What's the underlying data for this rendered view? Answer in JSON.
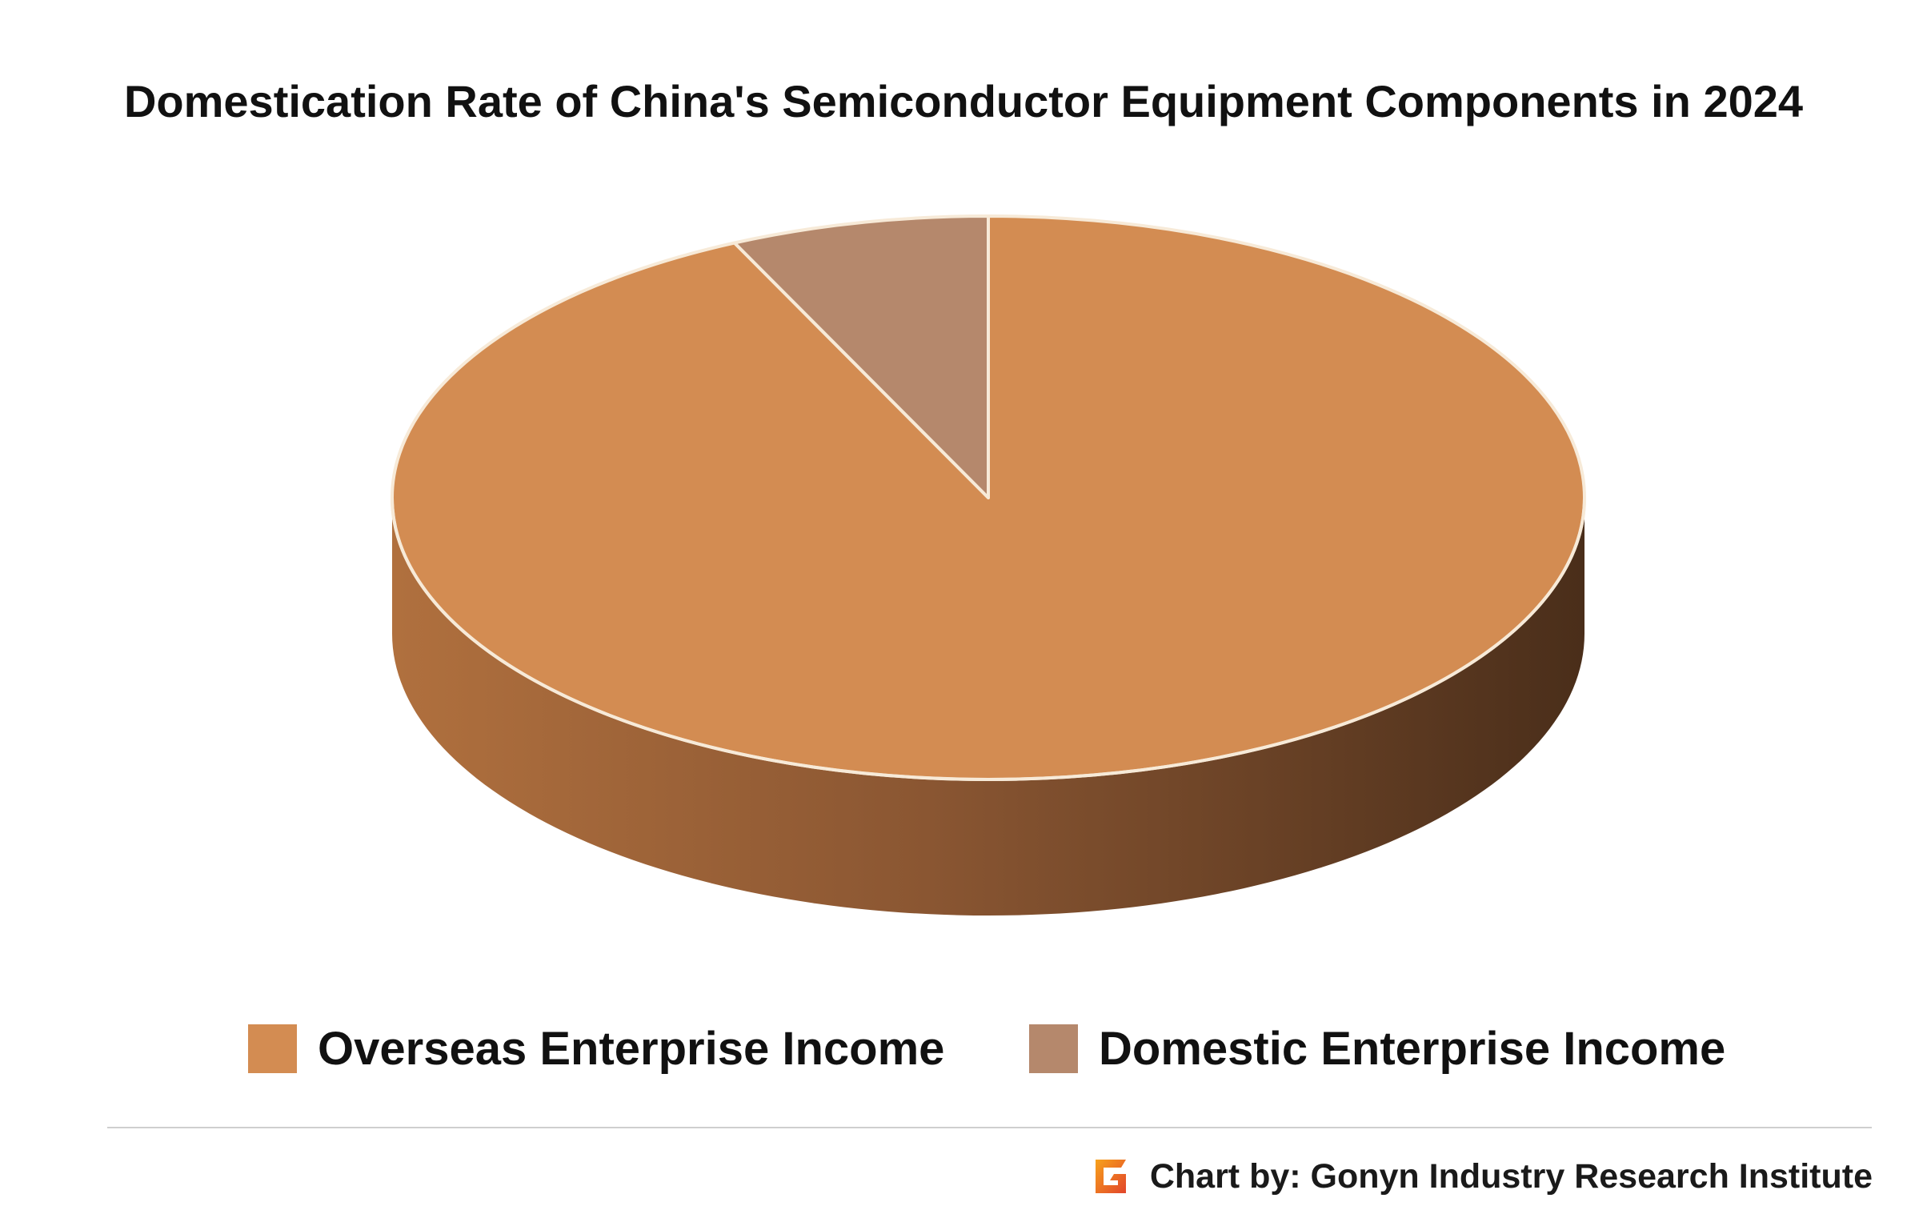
{
  "chart_data": {
    "type": "pie",
    "title": "Domestication Rate of China's Semiconductor Equipment Components in 2024",
    "slices": [
      {
        "label": "Overseas Enterprise Income",
        "value": 93,
        "color": "#d38c52"
      },
      {
        "label": "Domestic Enterprise Income",
        "value": 7,
        "color": "#b5886c"
      }
    ],
    "legend_position": "bottom",
    "style": "3d"
  },
  "colors": {
    "overseas": "#d38c52",
    "domestic": "#b5886c",
    "side_light": "#b0703e",
    "side_dark": "#4a2e1a",
    "rim": "#f7ead8"
  },
  "credit": {
    "text": "Chart by: Gonyn Industry Research Institute",
    "logo_icon": "gonyn-logo-icon"
  }
}
